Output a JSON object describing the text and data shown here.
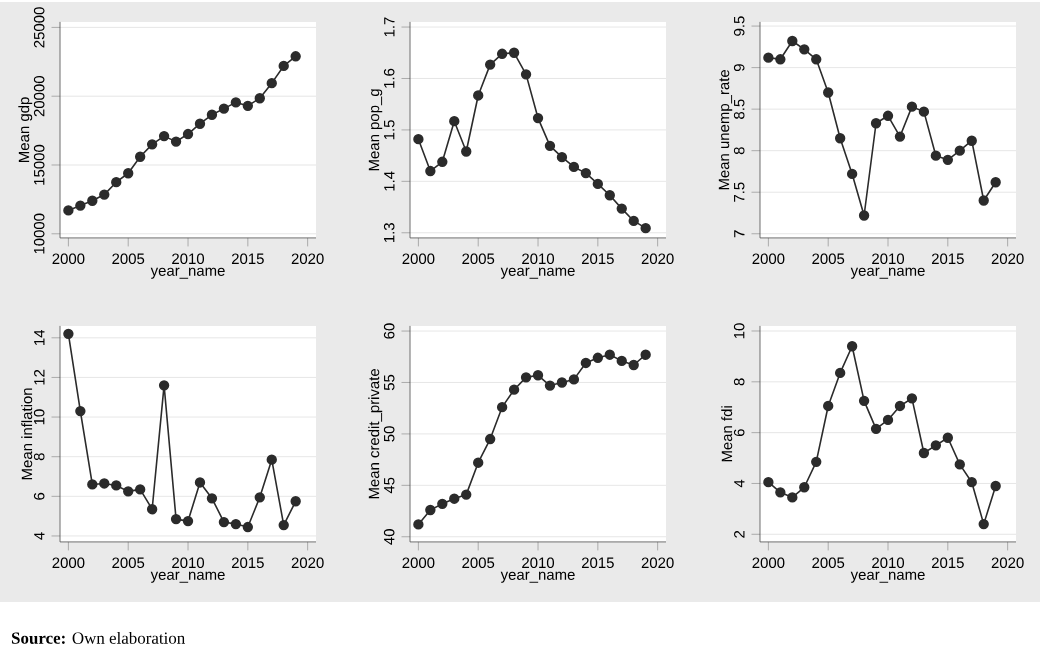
{
  "chart_data": [
    {
      "type": "line",
      "xlabel": "year_name",
      "ylabel": "Mean gdp",
      "x": [
        2000,
        2001,
        2002,
        2003,
        2004,
        2005,
        2006,
        2007,
        2008,
        2009,
        2010,
        2011,
        2012,
        2013,
        2014,
        2015,
        2016,
        2017,
        2018,
        2019
      ],
      "values": [
        11700,
        12050,
        12400,
        12850,
        13750,
        14400,
        15600,
        16500,
        17100,
        16700,
        17250,
        18000,
        18650,
        19100,
        19550,
        19300,
        19850,
        20950,
        22200,
        22900
      ],
      "color": "#2b2b2b",
      "xlim": [
        1999.3,
        2020.7
      ],
      "ylim": [
        9700,
        25400
      ],
      "xticks": [
        2000,
        2005,
        2010,
        2015,
        2020
      ],
      "yticks": [
        10000,
        15000,
        20000,
        25000
      ],
      "grid": "y",
      "marker": "circle",
      "line_style": "solid"
    },
    {
      "type": "line",
      "xlabel": "year_name",
      "ylabel": "Mean pop_g",
      "x": [
        2000,
        2001,
        2002,
        2003,
        2004,
        2005,
        2006,
        2007,
        2008,
        2009,
        2010,
        2011,
        2012,
        2013,
        2014,
        2015,
        2016,
        2017,
        2018,
        2019
      ],
      "values": [
        1.482,
        1.42,
        1.438,
        1.517,
        1.458,
        1.567,
        1.627,
        1.648,
        1.65,
        1.608,
        1.523,
        1.469,
        1.447,
        1.428,
        1.416,
        1.395,
        1.373,
        1.347,
        1.323,
        1.309
      ],
      "color": "#2b2b2b",
      "xlim": [
        1999.3,
        2020.7
      ],
      "ylim": [
        1.29,
        1.71
      ],
      "xticks": [
        2000,
        2005,
        2010,
        2015,
        2020
      ],
      "yticks": [
        1.3,
        1.4,
        1.5,
        1.6,
        1.7
      ],
      "grid": "y",
      "marker": "circle",
      "line_style": "solid"
    },
    {
      "type": "line",
      "xlabel": "year_name",
      "ylabel": "Mean unemp_rate",
      "x": [
        2000,
        2001,
        2002,
        2003,
        2004,
        2005,
        2006,
        2007,
        2008,
        2009,
        2010,
        2011,
        2012,
        2013,
        2014,
        2015,
        2016,
        2017,
        2018,
        2019
      ],
      "values": [
        9.12,
        9.1,
        9.32,
        9.22,
        9.1,
        8.7,
        8.15,
        7.72,
        7.22,
        8.33,
        8.42,
        8.17,
        8.53,
        8.47,
        7.94,
        7.89,
        8.0,
        8.12,
        7.4,
        7.62
      ],
      "color": "#2b2b2b",
      "xlim": [
        1999.3,
        2020.7
      ],
      "ylim": [
        6.95,
        9.55
      ],
      "xticks": [
        2000,
        2005,
        2010,
        2015,
        2020
      ],
      "yticks": [
        7,
        7.5,
        8,
        8.5,
        9,
        9.5
      ],
      "grid": "y",
      "marker": "circle",
      "line_style": "solid"
    },
    {
      "type": "line",
      "xlabel": "year_name",
      "ylabel": "Mean inflation",
      "x": [
        2000,
        2001,
        2002,
        2003,
        2004,
        2005,
        2006,
        2007,
        2008,
        2009,
        2010,
        2011,
        2012,
        2013,
        2014,
        2015,
        2016,
        2017,
        2018,
        2019
      ],
      "values": [
        14.2,
        10.3,
        6.6,
        6.65,
        6.55,
        6.25,
        6.35,
        5.35,
        11.6,
        4.85,
        4.75,
        6.7,
        5.9,
        4.7,
        4.6,
        4.45,
        5.95,
        7.85,
        4.55,
        5.75
      ],
      "color": "#2b2b2b",
      "xlim": [
        1999.3,
        2020.7
      ],
      "ylim": [
        3.7,
        14.6
      ],
      "xticks": [
        2000,
        2005,
        2010,
        2015,
        2020
      ],
      "yticks": [
        4,
        6,
        8,
        10,
        12,
        14
      ],
      "grid": "y",
      "marker": "circle",
      "line_style": "solid",
      "annotations": [
        "**Source:** Own elaboration"
      ]
    },
    {
      "type": "line",
      "xlabel": "year_name",
      "ylabel": "Mean credit_private",
      "x": [
        2000,
        2001,
        2002,
        2003,
        2004,
        2005,
        2006,
        2007,
        2008,
        2009,
        2010,
        2011,
        2012,
        2013,
        2014,
        2015,
        2016,
        2017,
        2018,
        2019
      ],
      "values": [
        41.2,
        42.6,
        43.2,
        43.7,
        44.1,
        47.2,
        49.5,
        52.6,
        54.3,
        55.5,
        55.7,
        54.7,
        55.0,
        55.3,
        56.9,
        57.4,
        57.7,
        57.1,
        56.7,
        57.7
      ],
      "color": "#2b2b2b",
      "xlim": [
        1999.3,
        2020.7
      ],
      "ylim": [
        39.5,
        60.5
      ],
      "xticks": [
        2000,
        2005,
        2010,
        2015,
        2020
      ],
      "yticks": [
        40,
        45,
        50,
        55,
        60
      ],
      "grid": "y",
      "marker": "circle",
      "line_style": "solid"
    },
    {
      "type": "line",
      "xlabel": "year_name",
      "ylabel": "Mean fdi",
      "x": [
        2000,
        2001,
        2002,
        2003,
        2004,
        2005,
        2006,
        2007,
        2008,
        2009,
        2010,
        2011,
        2012,
        2013,
        2014,
        2015,
        2016,
        2017,
        2018,
        2019
      ],
      "values": [
        4.05,
        3.65,
        3.45,
        3.85,
        4.85,
        7.05,
        8.35,
        9.4,
        7.25,
        6.15,
        6.5,
        7.05,
        7.35,
        5.2,
        5.5,
        5.8,
        4.75,
        4.05,
        2.4,
        3.9
      ],
      "color": "#2b2b2b",
      "xlim": [
        1999.3,
        2020.7
      ],
      "ylim": [
        1.7,
        10.2
      ],
      "xticks": [
        2000,
        2005,
        2010,
        2015,
        2020
      ],
      "yticks": [
        2,
        4,
        6,
        8,
        10
      ],
      "grid": "y",
      "marker": "circle",
      "line_style": "solid"
    }
  ]
}
